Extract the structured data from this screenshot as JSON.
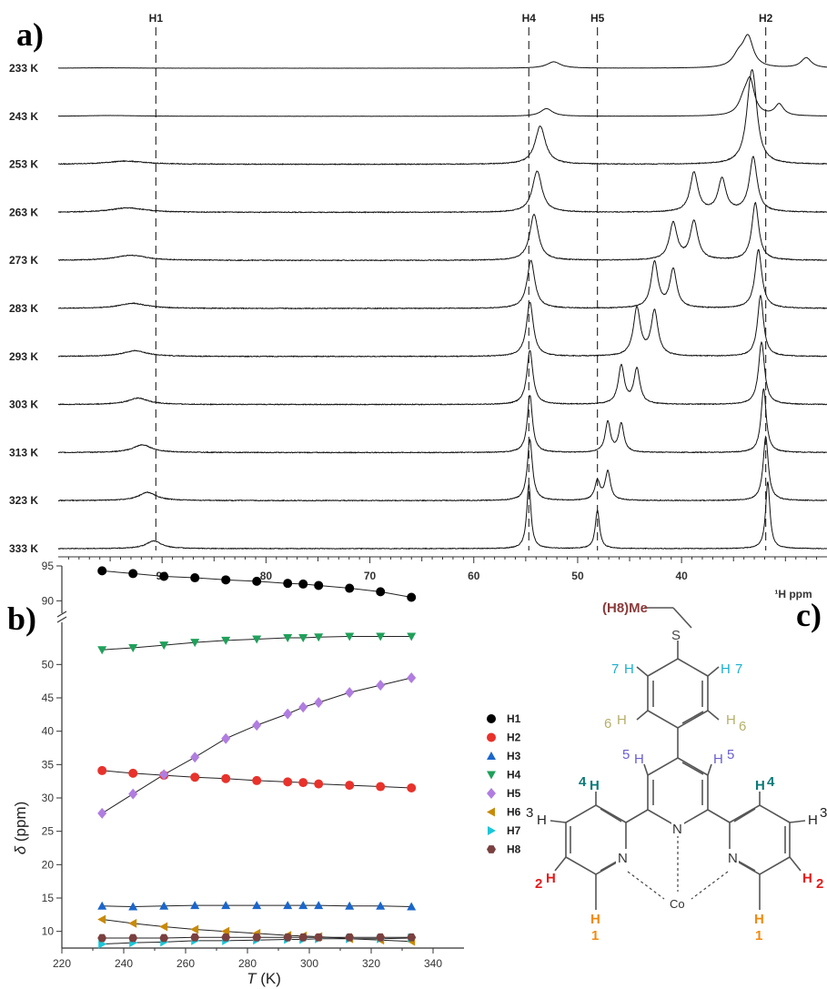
{
  "panel_labels": {
    "a": "a)",
    "b": "b)",
    "c": "c)"
  },
  "chart_data": [
    {
      "type": "line",
      "panel": "a",
      "description_axis_unit": "¹H ppm",
      "x_axis_label": "¹H ppm",
      "xlim": [
        100,
        26
      ],
      "x_ticks": [
        90,
        80,
        70,
        60,
        50,
        40
      ],
      "temperature_labels": [
        "233 K",
        "243 K",
        "253 K",
        "263 K",
        "273 K",
        "283 K",
        "293 K",
        "303 K",
        "313 K",
        "323 K",
        "333 K"
      ],
      "guide_lines": [
        {
          "label": "H1",
          "x": 90.6
        },
        {
          "label": "H4",
          "x": 54.7
        },
        {
          "label": "H5",
          "x": 48.1
        },
        {
          "label": "H2",
          "x": 31.9
        }
      ],
      "spectra": [
        {
          "temperature": "233 K",
          "noise": 0.2,
          "peaks": [
            [
              95.5,
              0.6,
              3.5
            ],
            [
              52.3,
              10,
              0.8
            ],
            [
              34.5,
              18,
              0.7
            ],
            [
              33.6,
              46,
              0.6
            ],
            [
              28.0,
              16,
              0.6
            ]
          ]
        },
        {
          "temperature": "243 K",
          "noise": 0.2,
          "peaks": [
            [
              95.0,
              1.2,
              3.0
            ],
            [
              53.0,
              12,
              0.7
            ],
            [
              34.0,
              22,
              0.6
            ],
            [
              33.4,
              50,
              0.5
            ],
            [
              30.6,
              18,
              0.5
            ]
          ]
        },
        {
          "temperature": "253 K",
          "noise": 0.9,
          "peaks": [
            [
              93.5,
              5,
              2.2
            ],
            [
              53.6,
              60,
              0.6
            ],
            [
              33.4,
              66,
              0.5
            ],
            [
              33.1,
              95,
              0.5
            ]
          ]
        },
        {
          "temperature": "263 K",
          "noise": 0.9,
          "peaks": [
            [
              93.3,
              7,
              2.0
            ],
            [
              53.9,
              65,
              0.55
            ],
            [
              38.8,
              62,
              0.45
            ],
            [
              36.1,
              52,
              0.45
            ],
            [
              33.1,
              86,
              0.45
            ]
          ]
        },
        {
          "temperature": "273 K",
          "noise": 0.9,
          "peaks": [
            [
              93.0,
              8,
              1.8
            ],
            [
              54.2,
              72,
              0.5
            ],
            [
              40.8,
              58,
              0.45
            ],
            [
              38.8,
              60,
              0.45
            ],
            [
              32.9,
              90,
              0.4
            ]
          ]
        },
        {
          "temperature": "283 K",
          "noise": 0.9,
          "peaks": [
            [
              92.8,
              8,
              1.6
            ],
            [
              54.5,
              75,
              0.45
            ],
            [
              42.6,
              72,
              0.4
            ],
            [
              40.8,
              60,
              0.4
            ],
            [
              32.6,
              92,
              0.4
            ]
          ]
        },
        {
          "temperature": "293 K",
          "noise": 0.9,
          "peaks": [
            [
              92.6,
              9,
              1.4
            ],
            [
              54.6,
              85,
              0.4
            ],
            [
              44.3,
              75,
              0.4
            ],
            [
              42.6,
              70,
              0.4
            ],
            [
              32.4,
              95,
              0.35
            ]
          ]
        },
        {
          "temperature": "303 K",
          "noise": 0.9,
          "peaks": [
            [
              92.3,
              10,
              1.2
            ],
            [
              54.6,
              85,
              0.35
            ],
            [
              45.8,
              60,
              0.35
            ],
            [
              44.3,
              55,
              0.35
            ],
            [
              32.3,
              98,
              0.35
            ]
          ]
        },
        {
          "temperature": "313 K",
          "noise": 0.9,
          "peaks": [
            [
              91.9,
              12,
              1.1
            ],
            [
              54.6,
              90,
              0.3
            ],
            [
              47.1,
              48,
              0.3
            ],
            [
              45.8,
              45,
              0.3
            ],
            [
              32.1,
              100,
              0.3
            ]
          ]
        },
        {
          "temperature": "323 K",
          "noise": 0.9,
          "peaks": [
            [
              91.4,
              13,
              1.0
            ],
            [
              54.6,
              95,
              0.3
            ],
            [
              48.1,
              30,
              0.3
            ],
            [
              47.1,
              45,
              0.3
            ],
            [
              31.9,
              100,
              0.3
            ]
          ]
        },
        {
          "temperature": "333 K",
          "noise": 0.8,
          "peaks": [
            [
              90.8,
              12,
              0.9
            ],
            [
              54.7,
              100,
              0.25
            ],
            [
              48.1,
              60,
              0.25
            ],
            [
              31.7,
              105,
              0.25
            ]
          ]
        }
      ]
    },
    {
      "type": "scatter",
      "panel": "b",
      "xlabel": "T (K)",
      "ylabel": "δ (ppm)",
      "xlim": [
        220,
        350
      ],
      "x_ticks": [
        220,
        240,
        260,
        280,
        300,
        320,
        340
      ],
      "y_ticks_lower": [
        10,
        15,
        20,
        25,
        30,
        35,
        40,
        45,
        50
      ],
      "y_ticks_upper": [
        90,
        95
      ],
      "axis_break": {
        "lower_range": [
          7.5,
          55.5
        ],
        "upper_range": [
          89,
          95
        ]
      },
      "x": [
        233,
        243,
        253,
        263,
        273,
        283,
        293,
        298,
        303,
        313,
        323,
        333
      ],
      "series": [
        {
          "name": "H1",
          "color": "#000000",
          "marker": "circle",
          "values": [
            94.3,
            93.9,
            93.5,
            93.3,
            93.0,
            92.8,
            92.5,
            92.4,
            92.2,
            91.8,
            91.3,
            90.5
          ]
        },
        {
          "name": "H2",
          "color": "#e8322b",
          "marker": "circle",
          "values": [
            34.1,
            33.7,
            33.4,
            33.1,
            32.9,
            32.6,
            32.4,
            32.3,
            32.1,
            31.9,
            31.7,
            31.5
          ]
        },
        {
          "name": "H3",
          "color": "#1a66cc",
          "marker": "triangle-up",
          "values": [
            13.8,
            13.7,
            13.8,
            13.9,
            13.9,
            13.9,
            13.9,
            13.9,
            13.9,
            13.8,
            13.8,
            13.7
          ]
        },
        {
          "name": "H4",
          "color": "#1fa05a",
          "marker": "triangle-down",
          "values": [
            52.2,
            52.5,
            52.9,
            53.3,
            53.6,
            53.8,
            54.0,
            54.0,
            54.1,
            54.2,
            54.2,
            54.2
          ]
        },
        {
          "name": "H5",
          "color": "#b07de0",
          "marker": "diamond",
          "values": [
            27.7,
            30.6,
            33.5,
            36.1,
            38.9,
            40.9,
            42.6,
            43.6,
            44.3,
            45.8,
            46.9,
            48.0
          ]
        },
        {
          "name": "H6",
          "color": "#c98a0a",
          "marker": "triangle-left",
          "values": [
            11.8,
            11.2,
            10.7,
            10.3,
            10.0,
            9.7,
            9.4,
            9.3,
            9.2,
            8.9,
            8.7,
            8.5
          ]
        },
        {
          "name": "H7",
          "color": "#1cc6d8",
          "marker": "triangle-right",
          "values": [
            8.1,
            8.3,
            8.4,
            8.6,
            8.6,
            8.7,
            8.8,
            8.8,
            8.9,
            8.9,
            8.9,
            9.0
          ]
        },
        {
          "name": "H8",
          "color": "#7a4040",
          "marker": "hexagon",
          "values": [
            9.0,
            9.0,
            9.0,
            9.1,
            9.1,
            9.1,
            9.1,
            9.1,
            9.1,
            9.1,
            9.1,
            9.1
          ]
        }
      ]
    }
  ],
  "structure": {
    "labels": {
      "h8me": "(H8)Me",
      "s": "S",
      "h7_left_num": "7",
      "h7_left_h": "H",
      "h7_right_h": "H",
      "h7_right_num": "7",
      "h6_left_num": "6",
      "h6_left_h": "H",
      "h6_right_h": "H",
      "h6_right_num": "6",
      "h5_left_num": "5",
      "h5_left_h": "H",
      "h5_right_h": "H",
      "h5_right_num": "5",
      "h4_left_num": "4",
      "h4_left_h": "H",
      "h4_right_h": "H",
      "h4_right_num": "4",
      "h3_left_num": "3",
      "h3_left_h": "H",
      "h3_right_h": "H",
      "h3_right_num": "3",
      "h2_left_num": "2",
      "h2_left_h": "H",
      "h2_right_h": "H",
      "h2_right_num": "2",
      "h1_left_h": "H",
      "h1_left_num": "1",
      "h1_right_h": "H",
      "h1_right_num": "1",
      "n_left": "N",
      "n_center": "N",
      "n_right": "N",
      "co": "Co"
    },
    "colors": {
      "h8": "#8b3a3a",
      "h7": "#1ab0cc",
      "h6": "#b5b06a",
      "h5": "#6a5fd0",
      "h4": "#0a7a78",
      "h3": "#222222",
      "h2": "#e51a1a",
      "h1": "#f08a10"
    }
  }
}
